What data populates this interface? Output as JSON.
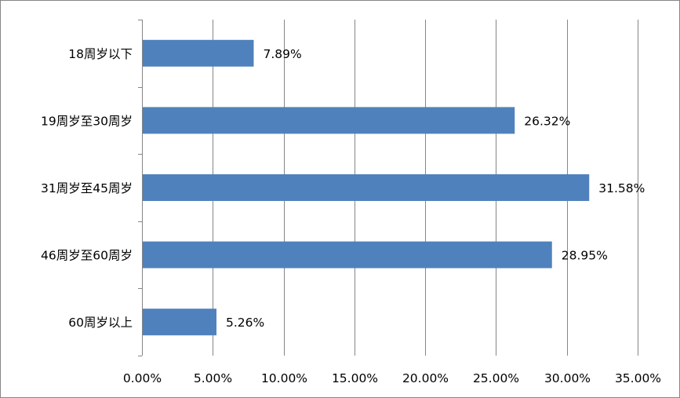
{
  "chart_data": {
    "type": "bar",
    "orientation": "horizontal",
    "categories": [
      "18周岁以下",
      "19周岁至30周岁",
      "31周岁至45周岁",
      "46周岁至60周岁",
      "60周岁以上"
    ],
    "values": [
      7.89,
      26.32,
      31.58,
      28.95,
      5.26
    ],
    "data_labels": [
      "7.89%",
      "26.32%",
      "31.58%",
      "28.95%",
      "5.26%"
    ],
    "x_ticks": [
      "0.00%",
      "5.00%",
      "10.00%",
      "15.00%",
      "20.00%",
      "25.00%",
      "30.00%",
      "35.00%"
    ],
    "xlim": [
      0,
      35
    ],
    "x_tick_step": 5,
    "unit": "%",
    "title": "",
    "xlabel": "",
    "ylabel": "",
    "grid": "vertical",
    "legend": "none",
    "bar_color": "#4F81BD",
    "grid_color": "#868686"
  }
}
